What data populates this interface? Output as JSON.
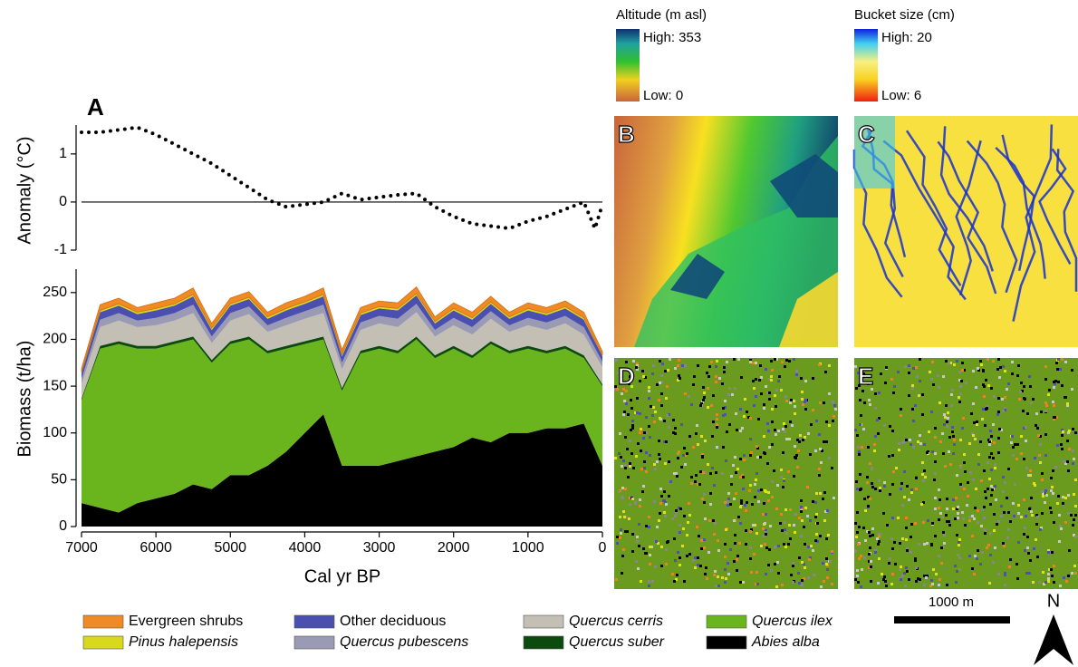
{
  "chart_data": [
    {
      "type": "line",
      "panel": "A",
      "ylabel": "Anomaly (°C)",
      "x": [
        7000,
        6750,
        6500,
        6250,
        6000,
        5750,
        5500,
        5250,
        5000,
        4750,
        4500,
        4250,
        4000,
        3750,
        3500,
        3250,
        3000,
        2750,
        2500,
        2250,
        2000,
        1750,
        1500,
        1250,
        1000,
        750,
        500,
        250,
        100,
        0
      ],
      "series": [
        {
          "name": "Anomaly",
          "color": "#000000",
          "values": [
            1.45,
            1.45,
            1.5,
            1.55,
            1.4,
            1.2,
            1.0,
            0.8,
            0.55,
            0.3,
            0.05,
            -0.1,
            -0.05,
            0.0,
            0.18,
            0.05,
            0.1,
            0.15,
            0.18,
            -0.1,
            -0.3,
            -0.45,
            -0.5,
            -0.55,
            -0.4,
            -0.3,
            -0.15,
            0.0,
            -0.55,
            -0.05
          ]
        }
      ],
      "xlim": [
        7000,
        0
      ],
      "ylim": [
        -1,
        1.6
      ],
      "yticks": [
        -1,
        0,
        1
      ],
      "zero_line": true
    },
    {
      "type": "stacked-area",
      "xlabel": "Cal yr BP",
      "ylabel": "Biomass (t/ha)",
      "x": [
        7000,
        6750,
        6500,
        6250,
        6000,
        5750,
        5500,
        5250,
        5000,
        4750,
        4500,
        4250,
        4000,
        3750,
        3500,
        3250,
        3000,
        2750,
        2500,
        2250,
        2000,
        1750,
        1500,
        1250,
        1000,
        750,
        500,
        250,
        0
      ],
      "series": [
        {
          "name": "Evergreen shrubs",
          "color": "#f08a24",
          "italic": false,
          "values": [
            4,
            6,
            6,
            5,
            6,
            6,
            7,
            5,
            6,
            6,
            5,
            6,
            6,
            7,
            5,
            6,
            6,
            6,
            7,
            5,
            6,
            6,
            6,
            5,
            6,
            6,
            6,
            6,
            4
          ]
        },
        {
          "name": "Pinus halepensis",
          "color": "#d8d81c",
          "italic": true,
          "values": [
            1,
            2,
            2,
            2,
            2,
            2,
            2,
            2,
            2,
            2,
            2,
            2,
            2,
            2,
            2,
            2,
            2,
            2,
            2,
            2,
            2,
            2,
            2,
            2,
            2,
            2,
            2,
            2,
            1
          ]
        },
        {
          "name": "Other deciduous",
          "color": "#4a4fb0",
          "italic": false,
          "values": [
            6,
            8,
            8,
            7,
            8,
            8,
            9,
            7,
            8,
            8,
            7,
            8,
            8,
            9,
            7,
            8,
            8,
            9,
            9,
            7,
            8,
            8,
            8,
            7,
            8,
            8,
            8,
            8,
            6
          ]
        },
        {
          "name": "Quercus pubescens",
          "color": "#9a9ab5",
          "italic": true,
          "values": [
            6,
            8,
            8,
            7,
            8,
            8,
            9,
            7,
            8,
            8,
            7,
            8,
            8,
            9,
            7,
            8,
            8,
            9,
            9,
            7,
            8,
            8,
            8,
            7,
            8,
            8,
            8,
            8,
            6
          ]
        },
        {
          "name": "Quercus cerris",
          "color": "#c4bfb5",
          "italic": true,
          "values": [
            15,
            20,
            22,
            20,
            22,
            22,
            25,
            18,
            22,
            24,
            20,
            22,
            24,
            25,
            20,
            22,
            24,
            25,
            26,
            20,
            22,
            22,
            24,
            20,
            22,
            22,
            24,
            22,
            18
          ]
        },
        {
          "name": "Quercus suber",
          "color": "#0d4a0d",
          "italic": true,
          "values": [
            2,
            3,
            3,
            3,
            3,
            3,
            3,
            3,
            3,
            3,
            3,
            3,
            3,
            3,
            3,
            3,
            3,
            3,
            3,
            3,
            3,
            3,
            3,
            3,
            3,
            3,
            3,
            3,
            2
          ]
        },
        {
          "name": "Quercus ilex",
          "color": "#6ab41e",
          "italic": true,
          "values": [
            110,
            170,
            180,
            165,
            160,
            160,
            155,
            135,
            140,
            145,
            120,
            110,
            95,
            80,
            80,
            120,
            125,
            115,
            125,
            100,
            105,
            85,
            105,
            85,
            90,
            80,
            85,
            70,
            85
          ]
        },
        {
          "name": "Abies alba",
          "color": "#000000",
          "italic": true,
          "values": [
            25,
            20,
            15,
            25,
            30,
            35,
            45,
            40,
            55,
            55,
            65,
            80,
            100,
            120,
            65,
            65,
            65,
            70,
            75,
            80,
            85,
            95,
            90,
            100,
            100,
            105,
            105,
            110,
            65
          ]
        }
      ],
      "xlim": [
        7000,
        0
      ],
      "ylim": [
        0,
        275
      ],
      "xticks": [
        7000,
        6000,
        5000,
        4000,
        3000,
        2000,
        1000,
        0
      ],
      "yticks": [
        0,
        50,
        100,
        150,
        200,
        250
      ]
    }
  ],
  "maps": {
    "panels": [
      "B",
      "C",
      "D",
      "E"
    ],
    "altitude": {
      "title": "Altitude (m asl)",
      "high": "High: 353",
      "low": "Low: 0"
    },
    "bucket": {
      "title": "Bucket size (cm)",
      "high": "High: 20",
      "low": "Low: 6"
    },
    "scale": "1000 m",
    "north": "N"
  }
}
